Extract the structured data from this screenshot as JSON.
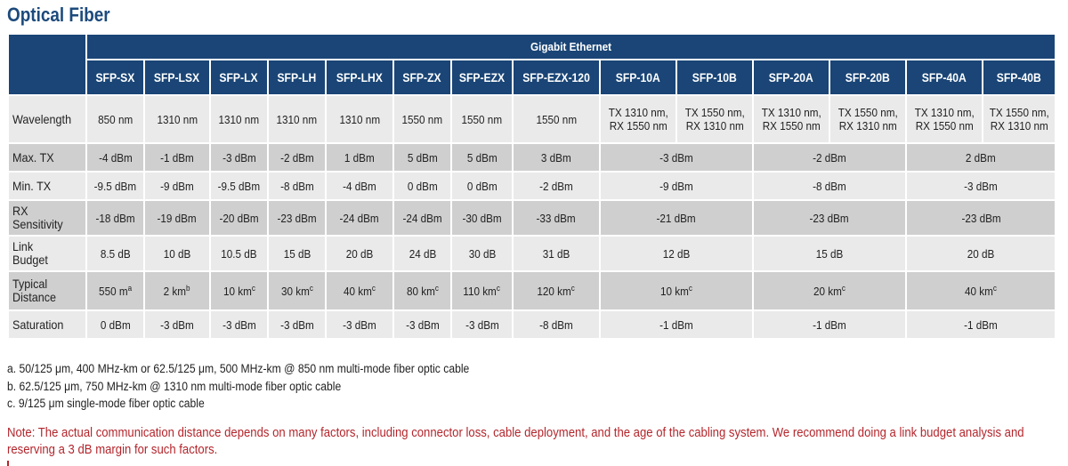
{
  "title": "Optical Fiber",
  "group_header": "Gigabit Ethernet",
  "columns": [
    "SFP-SX",
    "SFP-LSX",
    "SFP-LX",
    "SFP-LH",
    "SFP-LHX",
    "SFP-ZX",
    "SFP-EZX",
    "SFP-EZX-120",
    "SFP-10A",
    "SFP-10B",
    "SFP-20A",
    "SFP-20B",
    "SFP-40A",
    "SFP-40B"
  ],
  "rows": [
    {
      "label": [
        "Wavelength"
      ],
      "cells": [
        {
          "text": "850 nm"
        },
        {
          "text": "1310 nm"
        },
        {
          "text": "1310 nm"
        },
        {
          "text": "1310 nm"
        },
        {
          "text": "1310 nm"
        },
        {
          "text": "1550 nm"
        },
        {
          "text": "1550 nm"
        },
        {
          "text": "1550 nm"
        },
        {
          "lines": [
            "TX 1310 nm,",
            "RX 1550 nm"
          ]
        },
        {
          "lines": [
            "TX 1550 nm,",
            "RX 1310 nm"
          ]
        },
        {
          "lines": [
            "TX 1310 nm,",
            "RX 1550 nm"
          ]
        },
        {
          "lines": [
            "TX 1550 nm,",
            "RX 1310 nm"
          ]
        },
        {
          "lines": [
            "TX 1310 nm,",
            "RX 1550 nm"
          ]
        },
        {
          "lines": [
            "TX 1550 nm,",
            "RX 1310 nm"
          ]
        }
      ]
    },
    {
      "label": [
        "Max. TX"
      ],
      "cells": [
        {
          "text": "-4 dBm"
        },
        {
          "text": "-1 dBm"
        },
        {
          "text": "-3 dBm"
        },
        {
          "text": "-2 dBm"
        },
        {
          "text": "1 dBm"
        },
        {
          "text": "5 dBm"
        },
        {
          "text": "5 dBm"
        },
        {
          "text": "3 dBm"
        },
        {
          "text": "-3 dBm",
          "span": 2
        },
        {
          "text": "-2 dBm",
          "span": 2
        },
        {
          "text": "2 dBm",
          "span": 2
        }
      ]
    },
    {
      "label": [
        "Min. TX"
      ],
      "cells": [
        {
          "text": "-9.5 dBm"
        },
        {
          "text": "-9 dBm"
        },
        {
          "text": "-9.5 dBm"
        },
        {
          "text": "-8 dBm"
        },
        {
          "text": "-4 dBm"
        },
        {
          "text": "0 dBm"
        },
        {
          "text": "0 dBm"
        },
        {
          "text": "-2 dBm"
        },
        {
          "text": "-9 dBm",
          "span": 2
        },
        {
          "text": "-8 dBm",
          "span": 2
        },
        {
          "text": "-3 dBm",
          "span": 2
        }
      ]
    },
    {
      "label": [
        "RX",
        "Sensitivity"
      ],
      "cells": [
        {
          "text": "-18 dBm"
        },
        {
          "text": "-19 dBm"
        },
        {
          "text": "-20 dBm"
        },
        {
          "text": "-23 dBm"
        },
        {
          "text": "-24 dBm"
        },
        {
          "text": "-24 dBm"
        },
        {
          "text": "-30 dBm"
        },
        {
          "text": "-33 dBm"
        },
        {
          "text": "-21 dBm",
          "span": 2
        },
        {
          "text": "-23 dBm",
          "span": 2
        },
        {
          "text": "-23 dBm",
          "span": 2
        }
      ]
    },
    {
      "label": [
        "Link",
        "Budget"
      ],
      "cells": [
        {
          "text": "8.5 dB"
        },
        {
          "text": "10 dB"
        },
        {
          "text": "10.5 dB"
        },
        {
          "text": "15 dB"
        },
        {
          "text": "20 dB"
        },
        {
          "text": "24 dB"
        },
        {
          "text": "30 dB"
        },
        {
          "text": "31 dB"
        },
        {
          "text": "12 dB",
          "span": 2
        },
        {
          "text": "15 dB",
          "span": 2
        },
        {
          "text": "20 dB",
          "span": 2
        }
      ]
    },
    {
      "label": [
        "Typical",
        "Distance"
      ],
      "cells": [
        {
          "text": "550 m",
          "sup": "a"
        },
        {
          "text": "2 km",
          "sup": "b"
        },
        {
          "text": "10 km",
          "sup": "c"
        },
        {
          "text": "30 km",
          "sup": "c"
        },
        {
          "text": "40 km",
          "sup": "c"
        },
        {
          "text": "80 km",
          "sup": "c"
        },
        {
          "text": "110 km",
          "sup": "c"
        },
        {
          "text": "120 km",
          "sup": "c"
        },
        {
          "text": "10 km",
          "sup": "c",
          "span": 2
        },
        {
          "text": "20 km",
          "sup": "c",
          "span": 2
        },
        {
          "text": "40 km",
          "sup": "c",
          "span": 2
        }
      ]
    },
    {
      "label": [
        "Saturation"
      ],
      "cells": [
        {
          "text": "0 dBm"
        },
        {
          "text": "-3 dBm"
        },
        {
          "text": "-3 dBm"
        },
        {
          "text": "-3 dBm"
        },
        {
          "text": "-3 dBm"
        },
        {
          "text": "-3 dBm"
        },
        {
          "text": "-3 dBm"
        },
        {
          "text": "-8 dBm"
        },
        {
          "text": "-1 dBm",
          "span": 2
        },
        {
          "text": "-1 dBm",
          "span": 2
        },
        {
          "text": "-1 dBm",
          "span": 2
        }
      ]
    }
  ],
  "footnotes": [
    "a. 50/125 μm, 400 MHz-km or 62.5/125 μm, 500 MHz-km @ 850 nm multi-mode fiber optic cable",
    "b. 62.5/125 μm, 750 MHz-km @ 1310 nm multi-mode fiber optic cable",
    "c. 9/125 μm single-mode fiber optic cable"
  ],
  "note": "Note: The actual communication distance depends on many factors, including connector loss, cable deployment, and the age of the cabling system. We recommend doing a link budget analysis and reserving a 3 dB margin for such factors.",
  "colors": {
    "header": "#1a4576",
    "title": "#1c4a7c",
    "note": "#b3262c",
    "row_light": "#eaeaea",
    "row_dark": "#cfcfcf"
  }
}
